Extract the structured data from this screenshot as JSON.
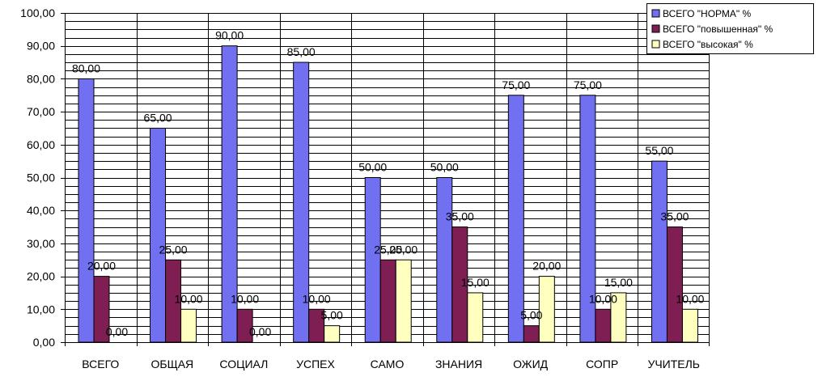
{
  "chart_data": {
    "type": "bar",
    "categories": [
      "ВСЕГО",
      "ОБЩАЯ",
      "СОЦИАЛ",
      "УСПЕХ",
      "САМО",
      "ЗНАНИЯ",
      "ОЖИД",
      "СОПР",
      "УЧИТЕЛЬ"
    ],
    "series": [
      {
        "name": "ВСЕГО \"НОРМА\" %",
        "color": "#7070F0",
        "values": [
          80,
          65,
          90,
          85,
          50,
          50,
          75,
          75,
          55
        ],
        "labels": [
          "80,00",
          "65,00",
          "90,00",
          "85,00",
          "50,00",
          "50,00",
          "75,00",
          "75,00",
          "55,00"
        ]
      },
      {
        "name": "ВСЕГО \"повышенная\"  %",
        "color": "#7E1E52",
        "values": [
          20,
          25,
          10,
          10,
          25,
          35,
          5,
          10,
          35
        ],
        "labels": [
          "20,00",
          "25,00",
          "10,00",
          "10,00",
          "25,00",
          "35,00",
          "5,00",
          "10,00",
          "35,00"
        ]
      },
      {
        "name": "ВСЕГО \"высокая\"  %",
        "color": "#FFFFC0",
        "values": [
          0,
          10,
          0,
          5,
          25,
          15,
          20,
          15,
          10
        ],
        "labels": [
          "0,00",
          "10,00",
          "0,00",
          "5,00",
          "25,00",
          "15,00",
          "20,00",
          "15,00",
          "10,00"
        ]
      }
    ],
    "ylim": [
      0,
      100
    ],
    "yticks": [
      "0,00",
      "10,00",
      "20,00",
      "30,00",
      "40,00",
      "50,00",
      "60,00",
      "70,00",
      "80,00",
      "90,00",
      "100,00"
    ],
    "ytick_values": [
      0,
      10,
      20,
      30,
      40,
      50,
      60,
      70,
      80,
      90,
      100
    ],
    "minor_grid_step": 2.5,
    "grid": true,
    "legend_position": "top-right"
  }
}
